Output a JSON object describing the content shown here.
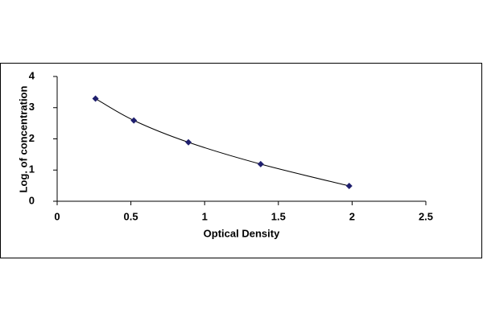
{
  "chart_data": {
    "type": "scatter",
    "x_label": "Optical Density",
    "y_label": "Log. of concentration",
    "series": [
      {
        "color": "#1f1f6e",
        "x": [
          0.26,
          0.52,
          0.89,
          1.38,
          1.98
        ],
        "values": [
          3.29,
          2.59,
          1.89,
          1.19,
          0.49
        ]
      }
    ],
    "smooth_line": true,
    "xlim": [
      0,
      2.5
    ],
    "xticks": [
      0,
      0.5,
      1,
      1.5,
      2,
      2.5
    ],
    "ylim": [
      0,
      4
    ],
    "yticks": [
      0,
      1,
      2,
      3,
      4
    ],
    "grid": false
  }
}
